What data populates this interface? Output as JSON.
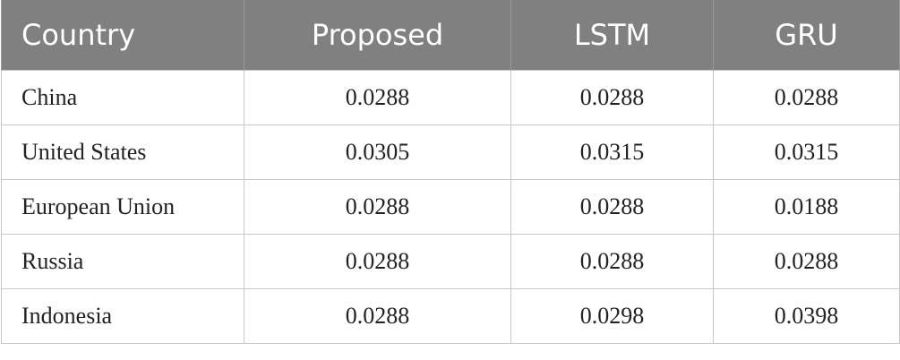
{
  "table": {
    "header": [
      "Country",
      "Proposed",
      "LSTM",
      "GRU"
    ],
    "rows": [
      [
        "China",
        "0.0288",
        "0.0288",
        "0.0288"
      ],
      [
        "United States",
        "0.0305",
        "0.0315",
        "0.0315"
      ],
      [
        "European Union",
        "0.0288",
        "0.0288",
        "0.0188"
      ],
      [
        "Russia",
        "0.0288",
        "0.0288",
        "0.0288"
      ],
      [
        "Indonesia",
        "0.0288",
        "0.0298",
        "0.0398"
      ]
    ]
  }
}
